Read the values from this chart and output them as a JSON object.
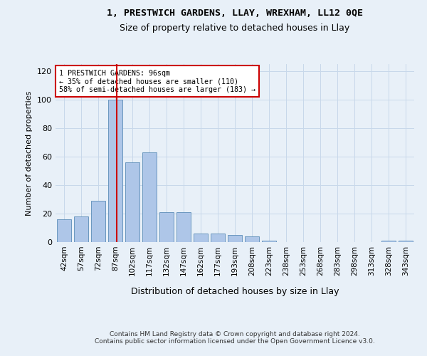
{
  "title_line1": "1, PRESTWICH GARDENS, LLAY, WREXHAM, LL12 0QE",
  "title_line2": "Size of property relative to detached houses in Llay",
  "xlabel": "Distribution of detached houses by size in Llay",
  "ylabel": "Number of detached properties",
  "categories": [
    "42sqm",
    "57sqm",
    "72sqm",
    "87sqm",
    "102sqm",
    "117sqm",
    "132sqm",
    "147sqm",
    "162sqm",
    "177sqm",
    "193sqm",
    "208sqm",
    "223sqm",
    "238sqm",
    "253sqm",
    "268sqm",
    "283sqm",
    "298sqm",
    "313sqm",
    "328sqm",
    "343sqm"
  ],
  "values": [
    16,
    18,
    29,
    100,
    56,
    63,
    21,
    21,
    6,
    6,
    5,
    4,
    1,
    0,
    0,
    0,
    0,
    0,
    0,
    1,
    1
  ],
  "bar_color": "#aec6e8",
  "bar_edge_color": "#5b8db8",
  "grid_color": "#c8d8ea",
  "background_color": "#e8f0f8",
  "property_line_color": "#cc0000",
  "annotation_text": "1 PRESTWICH GARDENS: 96sqm\n← 35% of detached houses are smaller (110)\n58% of semi-detached houses are larger (183) →",
  "annotation_box_facecolor": "#ffffff",
  "annotation_box_edgecolor": "#cc0000",
  "footer_text": "Contains HM Land Registry data © Crown copyright and database right 2024.\nContains public sector information licensed under the Open Government Licence v3.0.",
  "ylim": [
    0,
    125
  ],
  "yticks": [
    0,
    20,
    40,
    60,
    80,
    100,
    120
  ]
}
